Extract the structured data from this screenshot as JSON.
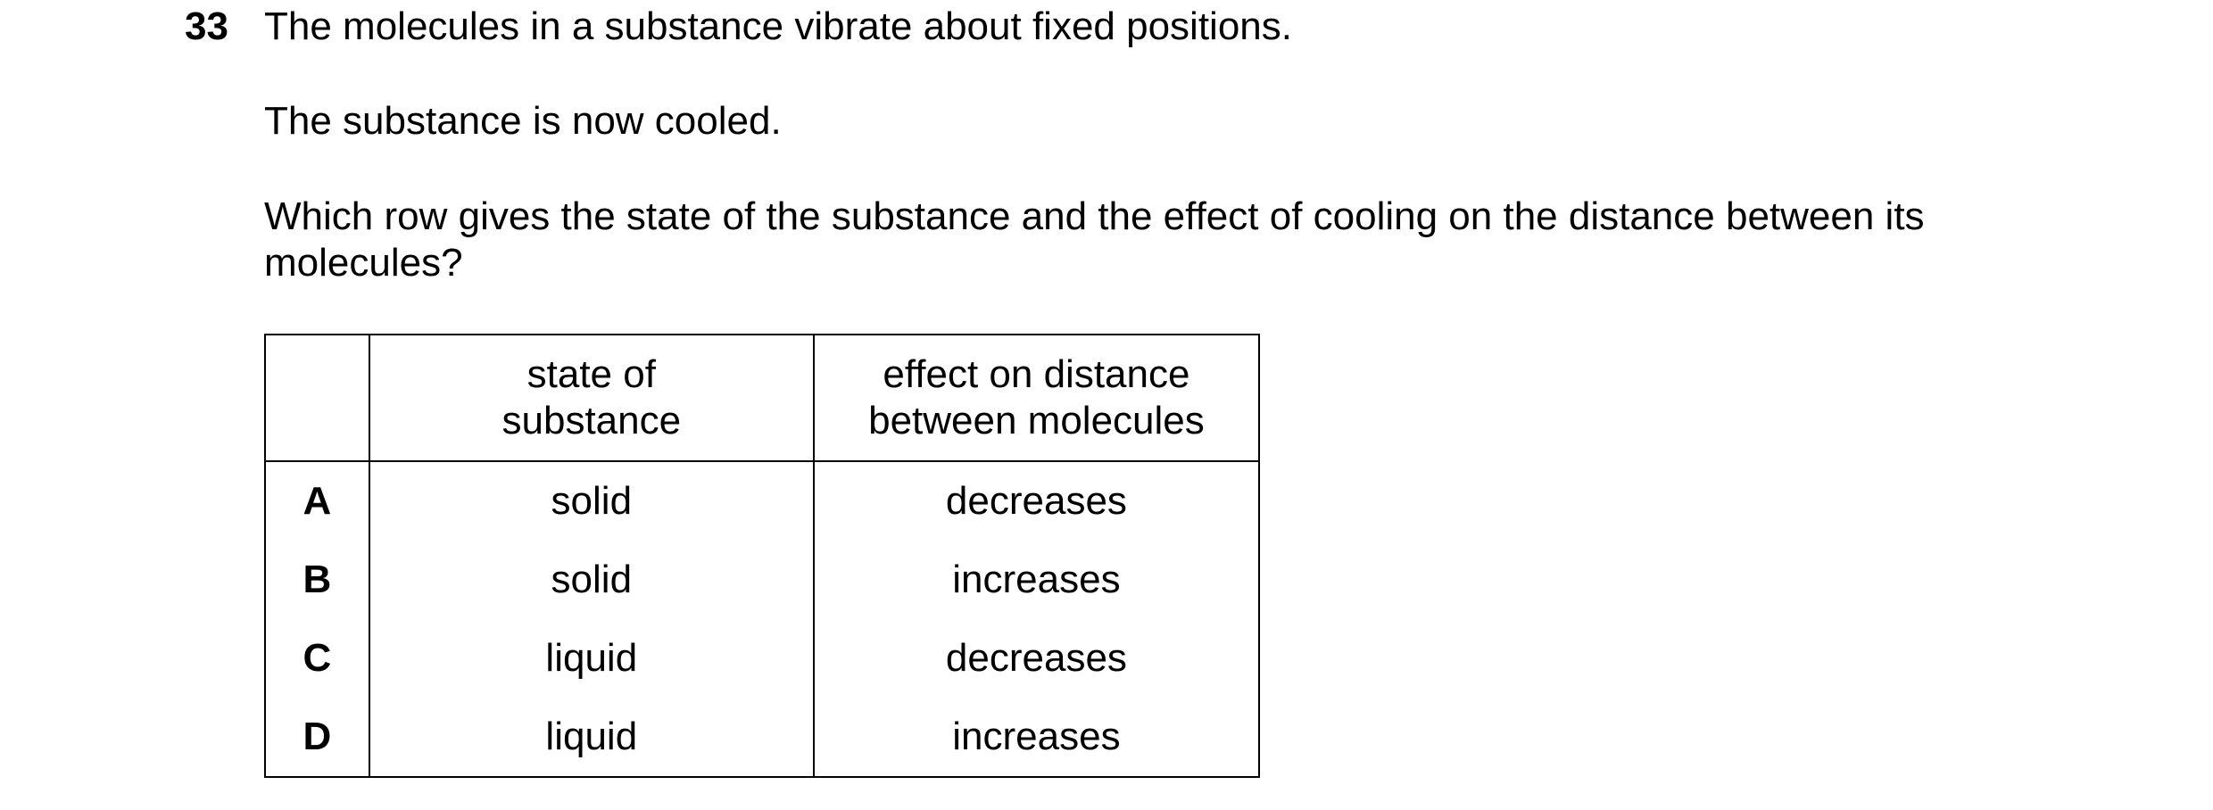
{
  "question": {
    "number": "33",
    "paragraphs": [
      "The molecules in a substance vibrate about fixed positions.",
      "The substance is now cooled.",
      "Which row gives the state of the substance and the effect of cooling on the distance between its molecules?"
    ]
  },
  "table": {
    "headers": {
      "state_line1": "state of",
      "state_line2": "substance",
      "effect_line1": "effect on distance",
      "effect_line2": "between molecules"
    },
    "rows": [
      {
        "letter": "A",
        "state": "solid",
        "effect": "decreases"
      },
      {
        "letter": "B",
        "state": "solid",
        "effect": "increases"
      },
      {
        "letter": "C",
        "state": "liquid",
        "effect": "decreases"
      },
      {
        "letter": "D",
        "state": "liquid",
        "effect": "increases"
      }
    ]
  }
}
